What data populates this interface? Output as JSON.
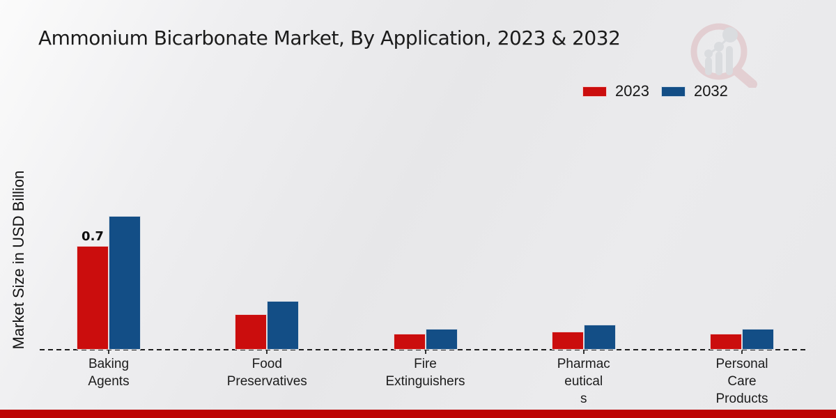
{
  "page": {
    "title": "Ammonium Bicarbonate Market, By Application, 2023 & 2032",
    "ylabel": "Market Size in USD Billion",
    "watermark_icon": "magnifier-bar-chart-logo"
  },
  "legend": {
    "position": "top-right",
    "items": [
      {
        "label": "2023",
        "color": "#cb0d0d"
      },
      {
        "label": "2032",
        "color": "#134e86"
      }
    ]
  },
  "chart_data": {
    "type": "bar",
    "title": "Ammonium Bicarbonate Market, By Application, 2023 & 2032",
    "ylabel": "Market Size in USD Billion",
    "categories": [
      "Baking Agents",
      "Food Preservatives",
      "Fire Extinguishers",
      "Pharmaceuticals",
      "Personal Care Products"
    ],
    "category_display_lines": [
      [
        "Baking",
        "Agents"
      ],
      [
        "Food",
        "Preservatives"
      ],
      [
        "Fire",
        "Extinguishers"
      ],
      [
        "Pharmac",
        "eutical",
        "s"
      ],
      [
        "Personal",
        "Care",
        "Products"
      ]
    ],
    "series": [
      {
        "name": "2023",
        "color": "#cb0d0d",
        "values": [
          0.7,
          0.24,
          0.11,
          0.12,
          0.11
        ]
      },
      {
        "name": "2032",
        "color": "#134e86",
        "values": [
          0.9,
          0.33,
          0.14,
          0.17,
          0.14
        ]
      }
    ],
    "data_labels": [
      {
        "series": "2023",
        "category": "Baking Agents",
        "text": "0.7"
      }
    ],
    "ylim": [
      0,
      0.95
    ],
    "grid": false,
    "baseline_style": "dashed",
    "legend_position": "top-right"
  },
  "footer": {
    "accent_bar_color": "#bd0505"
  }
}
